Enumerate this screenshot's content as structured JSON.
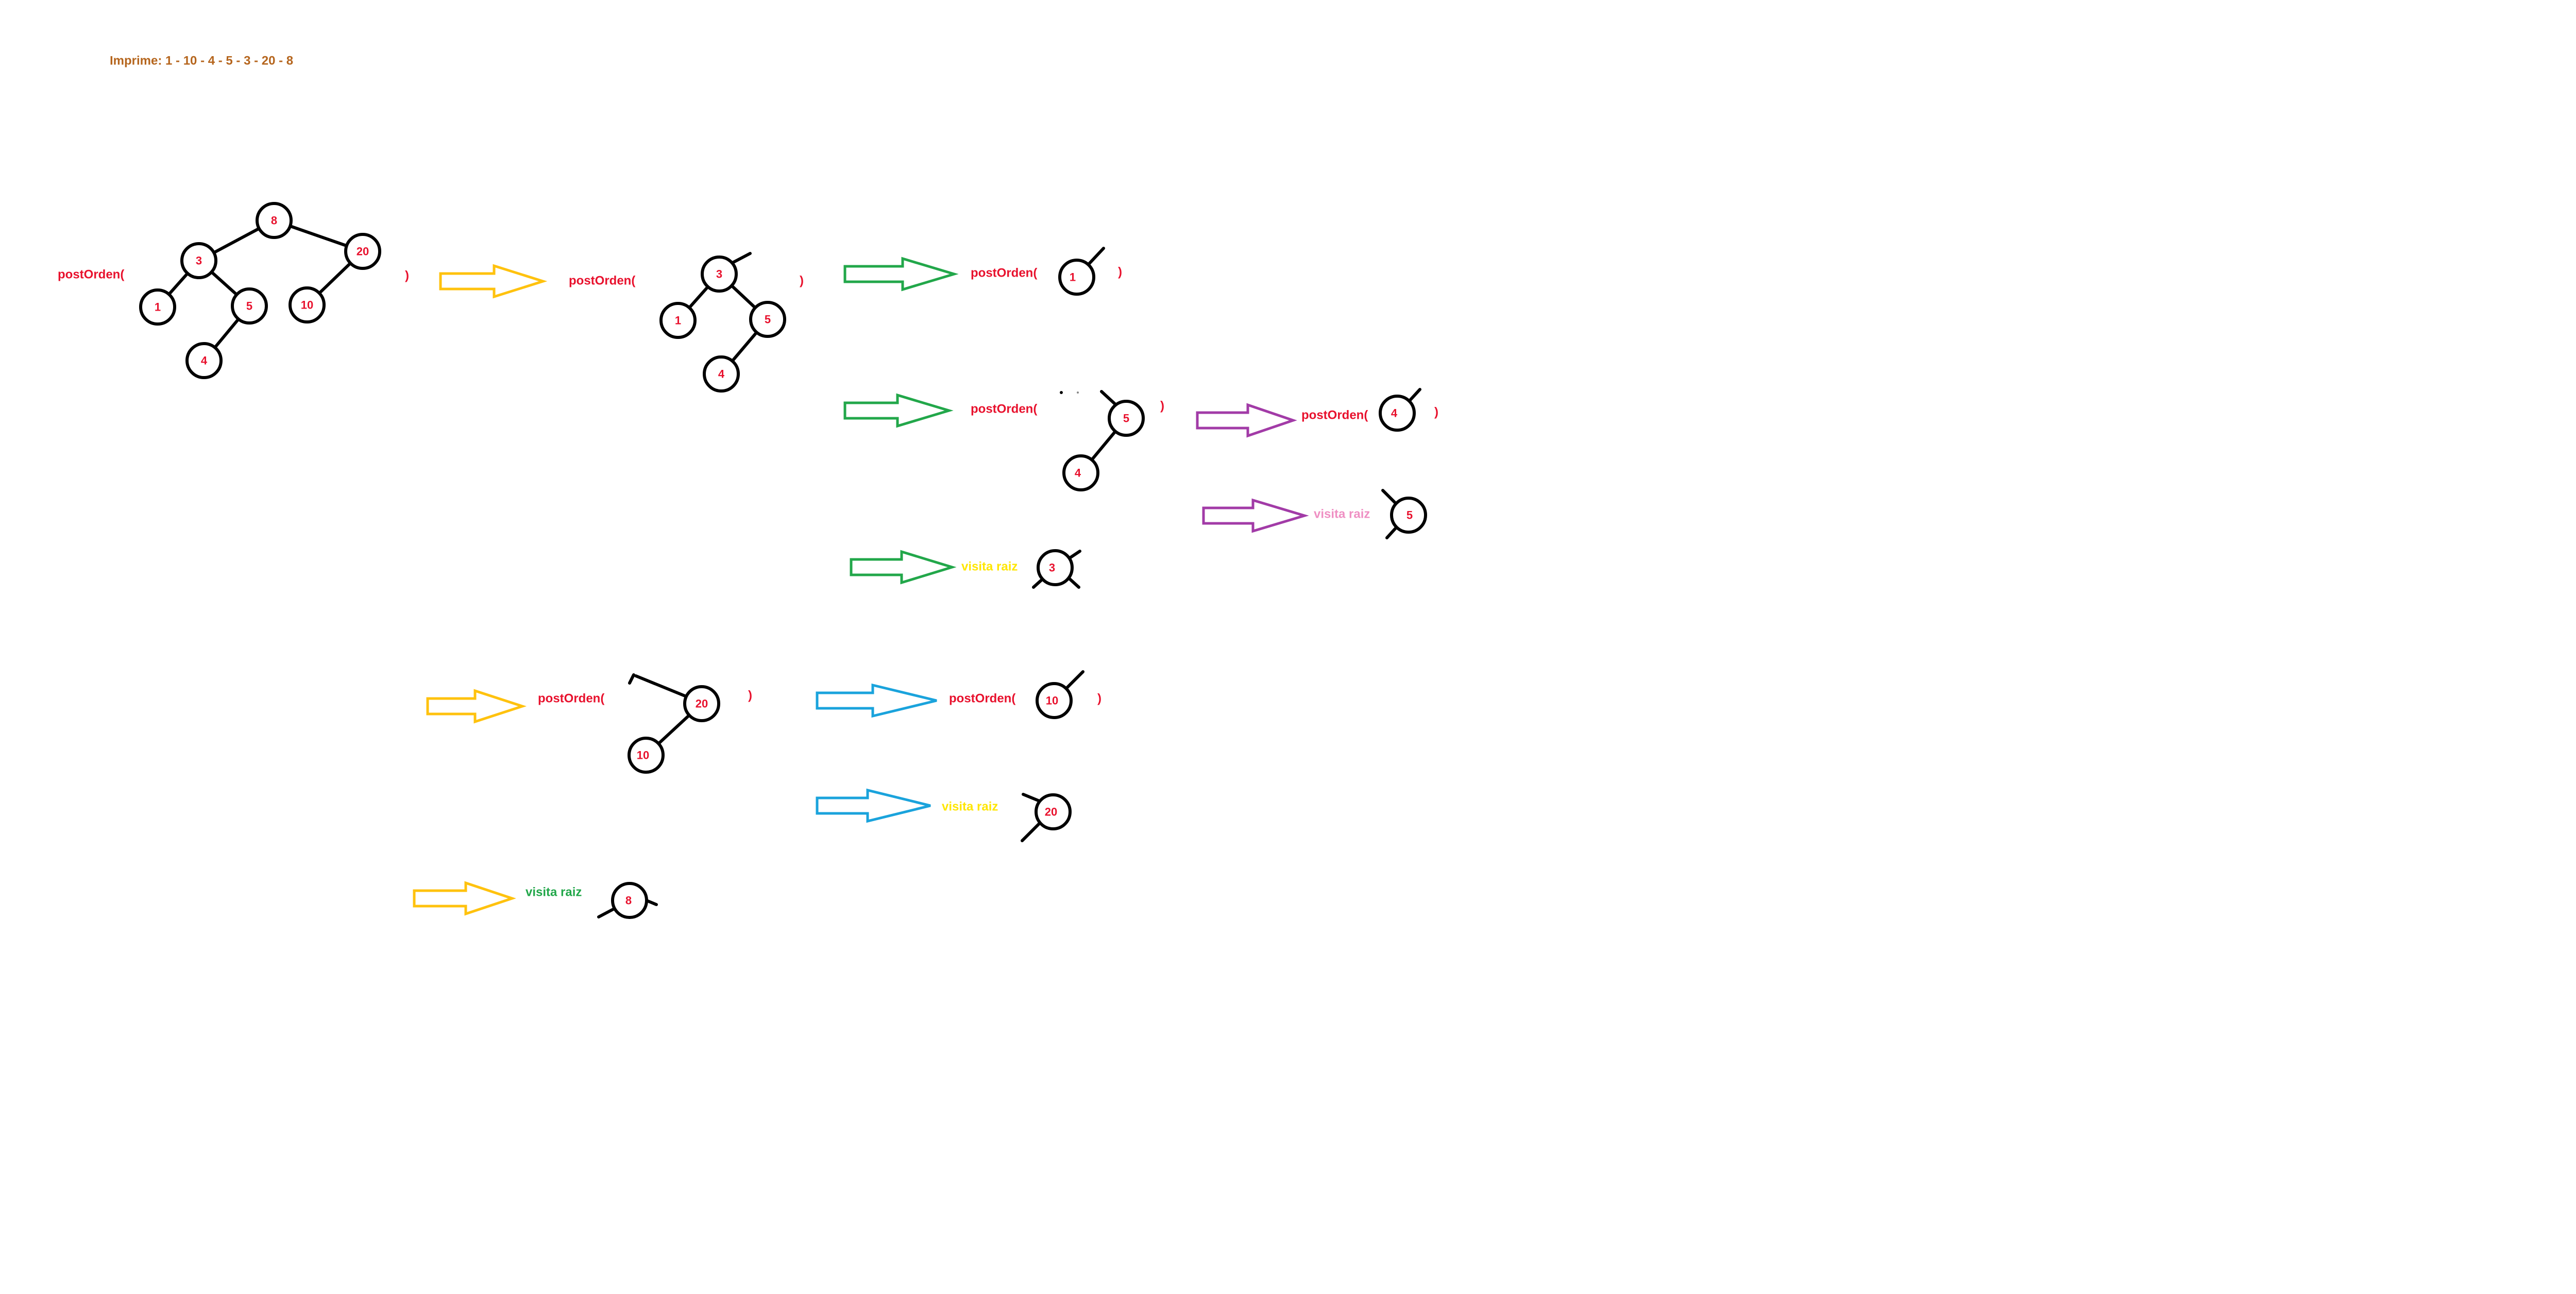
{
  "header": {
    "print_line": "Imprime: 1 -  10 -   4 - 5  - 3 - 20 - 8"
  },
  "colors": {
    "node_text": "#e8112d",
    "call_text": "#e8112d",
    "print_line": "#b5651d",
    "yellow": "#ffc20e",
    "green": "#22a74a",
    "purple": "#a23ba7",
    "blue": "#1aa3dc",
    "pink": "#ef8fc3",
    "yellow_text": "#ffe600",
    "black": "#000000"
  },
  "call_label": "postOrden(",
  "close_paren": ")",
  "visit_label": "visita raiz",
  "nodes": [
    "8",
    "3",
    "20",
    "1",
    "5",
    "10",
    "4",
    "3",
    "1",
    "5",
    "4",
    "1",
    "5",
    "4",
    "4",
    "5",
    "3",
    "20",
    "10",
    "10",
    "20",
    "8"
  ],
  "icons": [
    "arrow-icon"
  ]
}
